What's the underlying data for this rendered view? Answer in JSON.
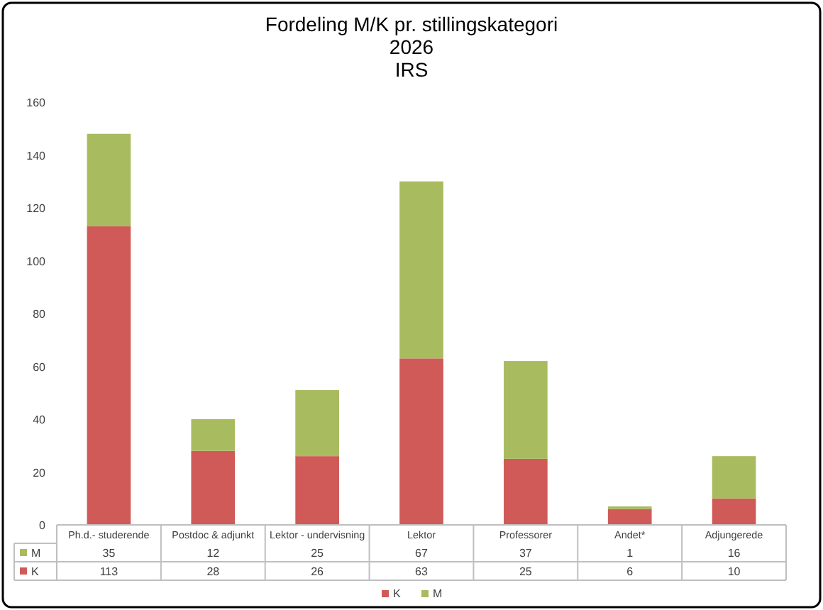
{
  "chart_data": {
    "type": "bar",
    "title": "Fordeling M/K pr. stillingskategori\n2026\nIRS",
    "categories": [
      "Ph.d.- studerende",
      "Postdoc & adjunkt",
      "Lektor - undervisning",
      "Lektor",
      "Professorer",
      "Andet*",
      "Adjungerede"
    ],
    "series": [
      {
        "name": "K",
        "color": "#d05a57",
        "values": [
          113,
          28,
          26,
          63,
          25,
          6,
          10
        ]
      },
      {
        "name": "M",
        "color": "#a9bb5f",
        "values": [
          35,
          12,
          25,
          67,
          37,
          1,
          16
        ]
      }
    ],
    "stacked": true,
    "ylim": [
      0,
      160
    ],
    "yticks": [
      0,
      20,
      40,
      60,
      80,
      100,
      120,
      140,
      160
    ],
    "grid": false,
    "legend": "bottom",
    "data_labels": true
  }
}
